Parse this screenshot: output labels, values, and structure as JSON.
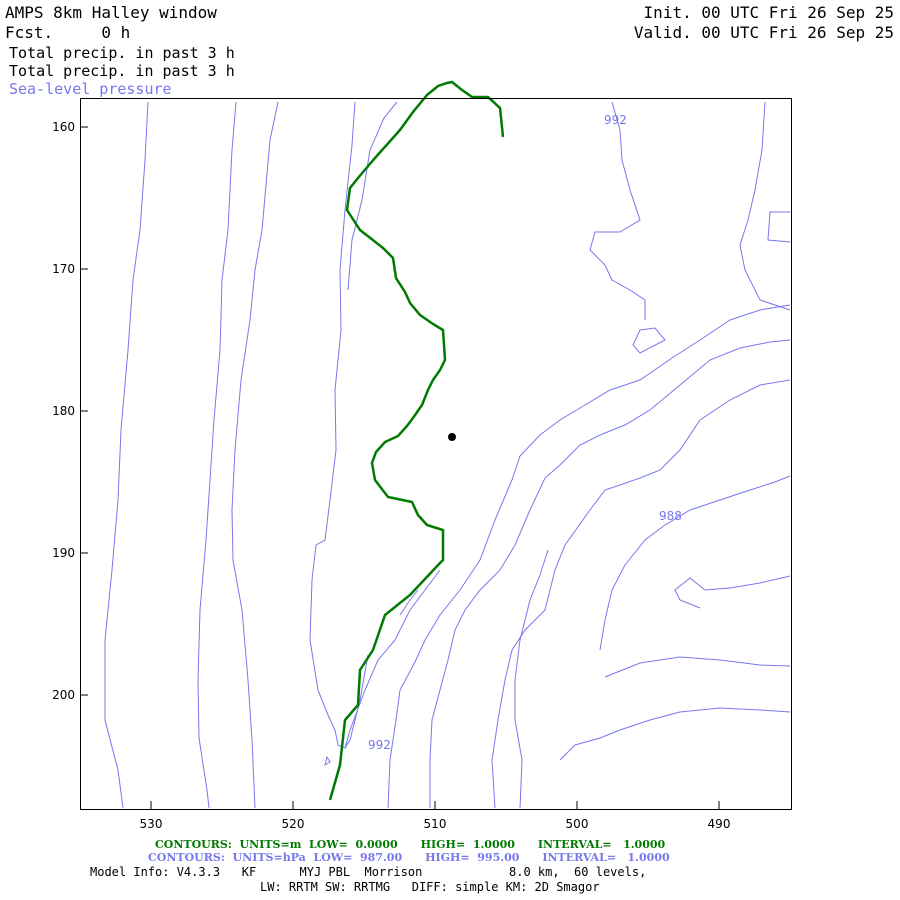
{
  "header": {
    "title": "AMPS 8km Halley window",
    "fcst": "Fcst.     0 h",
    "field1": "Total precip. in past 3 h",
    "field2": "Total precip. in past 3 h",
    "field3": "Sea-level pressure",
    "init": "Init. 00 UTC Fri 26 Sep 25",
    "valid": "Valid. 00 UTC Fri 26 Sep 25"
  },
  "axes": {
    "y_ticks": [
      "160",
      "170",
      "180",
      "190",
      "200"
    ],
    "x_ticks": [
      "530",
      "520",
      "510",
      "500",
      "490"
    ]
  },
  "contour_labels": [
    "992",
    "988",
    "992"
  ],
  "colors": {
    "precip": "#007a00",
    "pressure": "#7777ee",
    "frame": "#000000"
  },
  "footer": {
    "green_line": "CONTOURS:  UNITS=m  LOW=  0.0000      HIGH=  1.0000      INTERVAL=   1.0000",
    "blue_line": "CONTOURS:  UNITS=hPa  LOW=  987.00      HIGH=  995.00      INTERVAL=   1.0000",
    "model_line": "Model Info: V4.3.3   KF      MYJ PBL  Morrison            8.0 km,  60 levels,",
    "phys_line": "LW: RRTM SW: RRTMG   DIFF: simple KM: 2D Smagor"
  }
}
